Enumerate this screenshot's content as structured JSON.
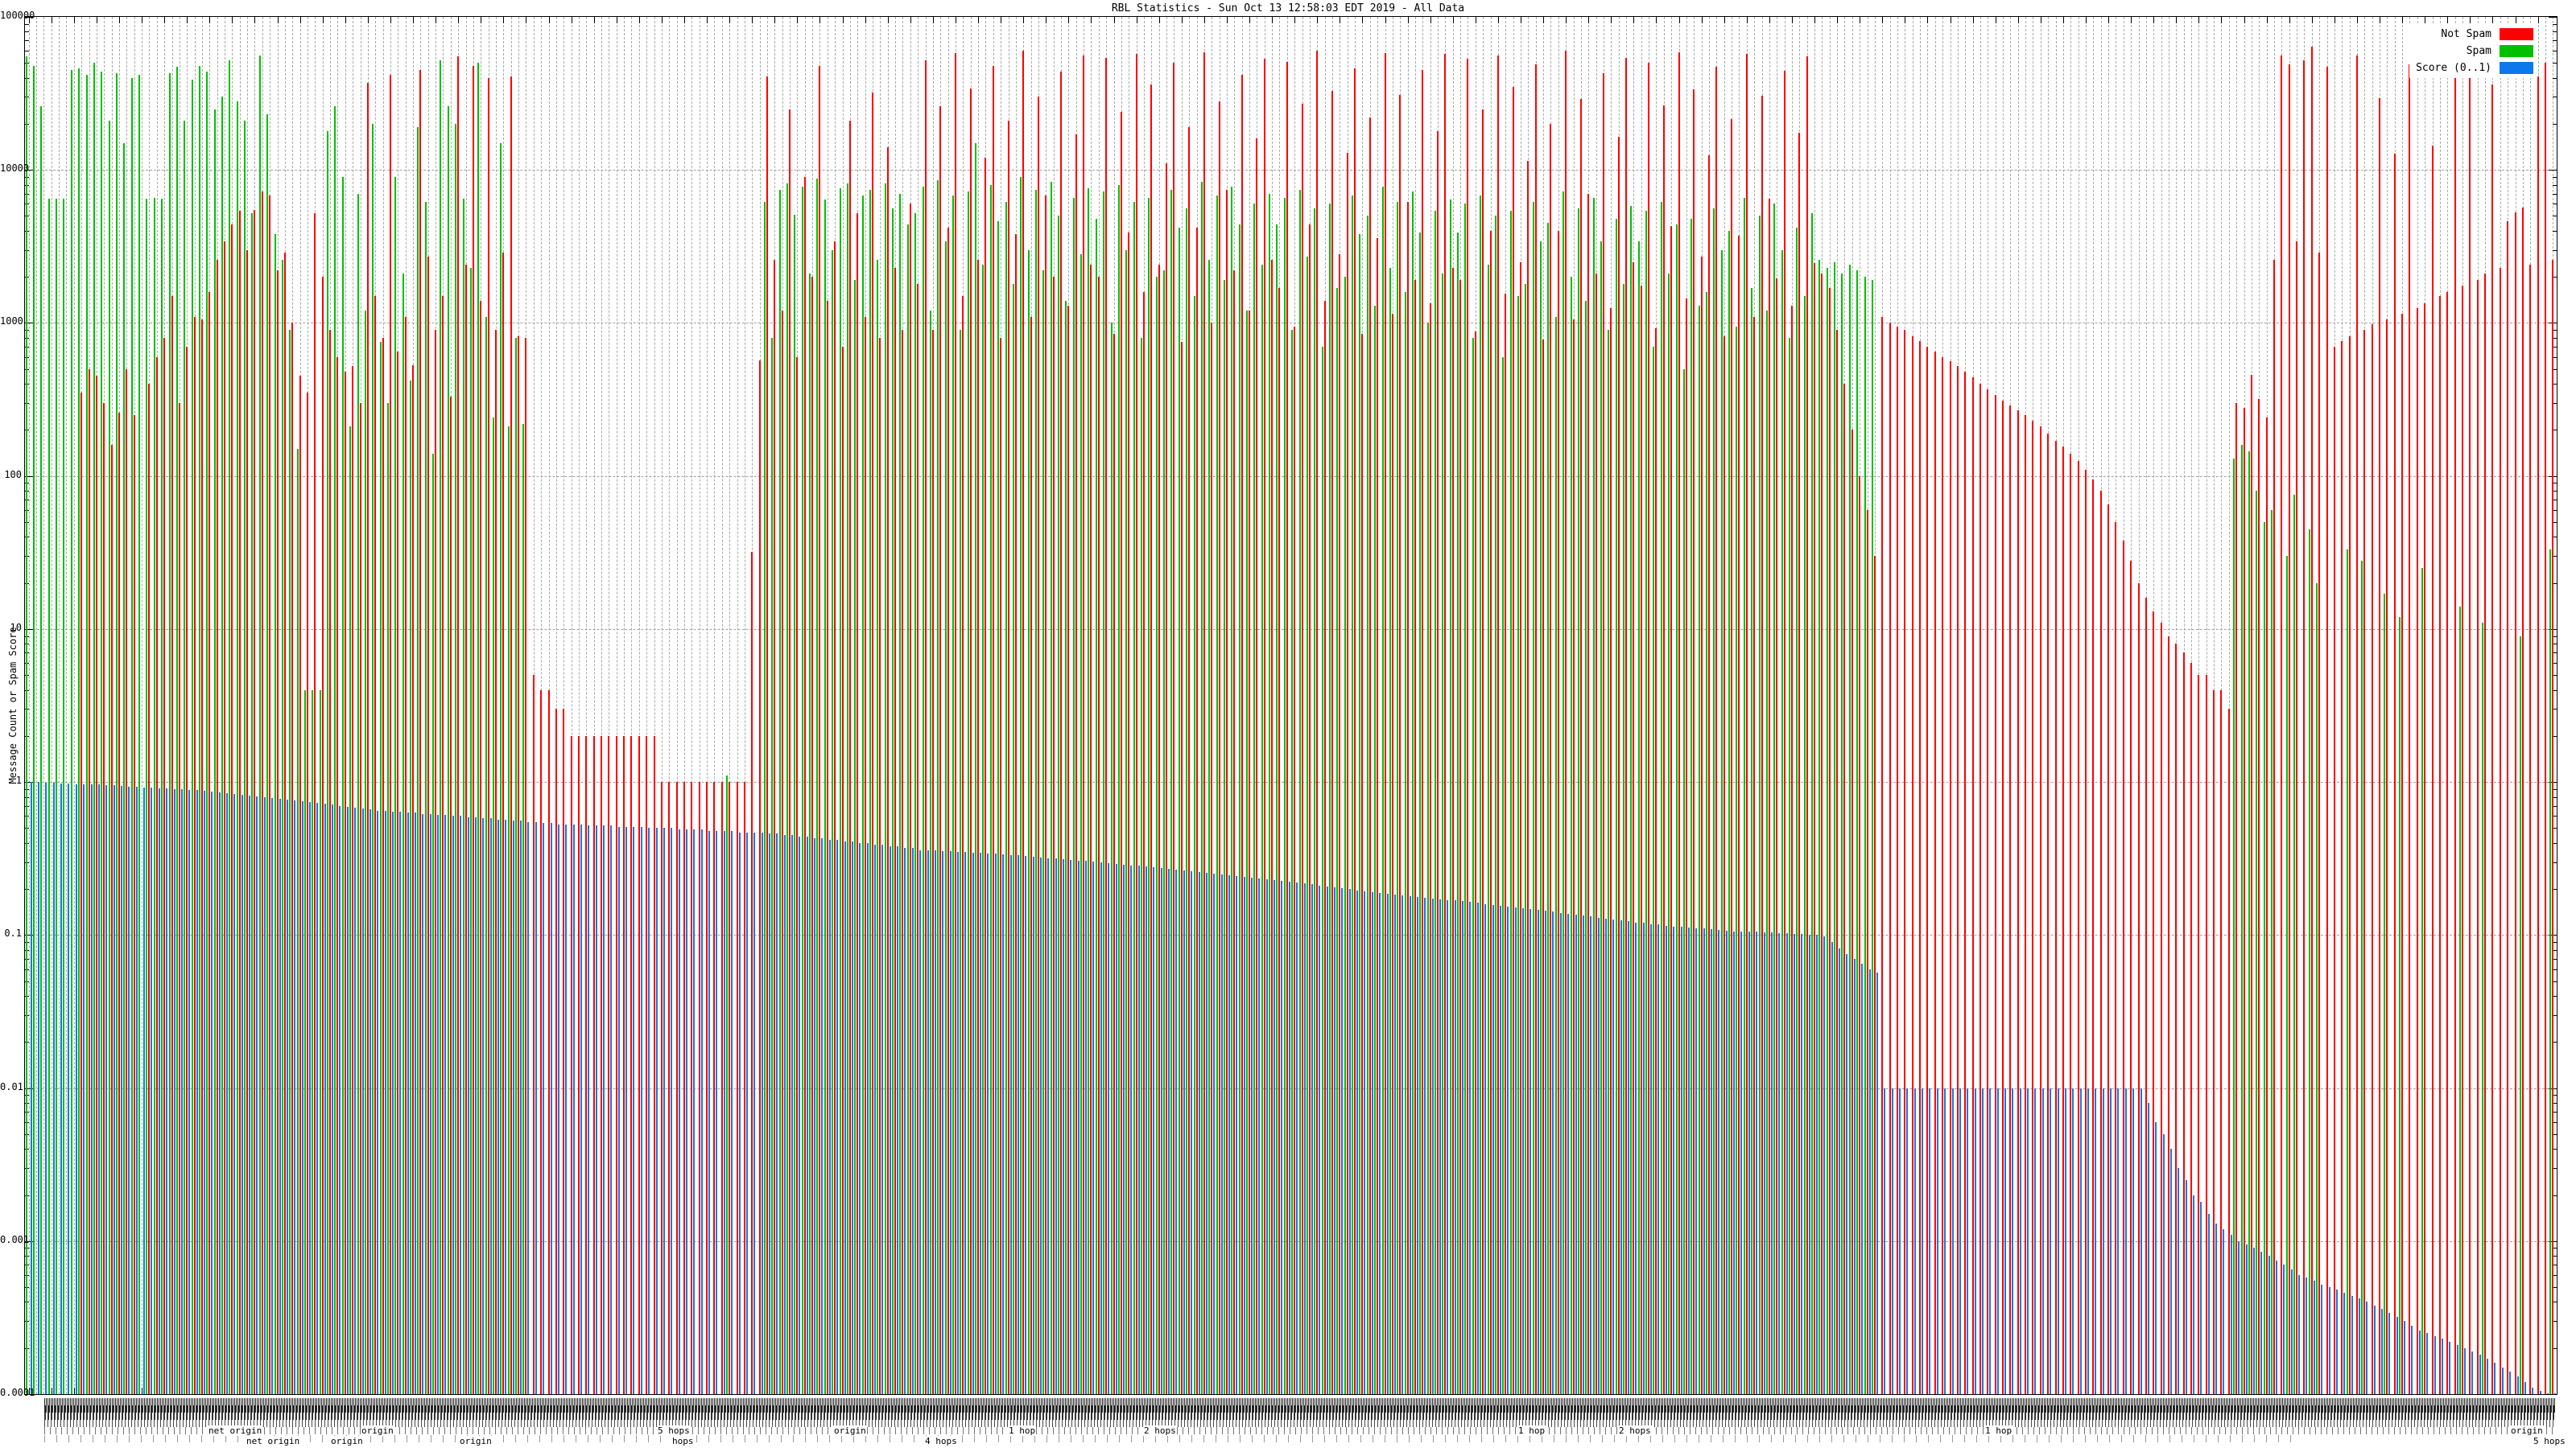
{
  "title": "RBL Statistics - Sun Oct 13 12:58:03 EDT 2019 - All Data",
  "y_axis_label": "Message Count or Spam Score",
  "colors": {
    "not_spam": "#ff0000",
    "spam": "#00c000",
    "score": "#0d78ec",
    "grid": "#a0a0a0",
    "axis": "#000000"
  },
  "legend": {
    "items": [
      {
        "label": "Not Spam",
        "color": "#ff0000"
      },
      {
        "label": "Spam",
        "color": "#00c000"
      },
      {
        "label": "Score (0..1)",
        "color": "#0d78ec"
      }
    ]
  },
  "axes": {
    "y_scale": "log",
    "y_ticks": [
      "100000",
      "10000",
      "1000",
      "100",
      "10",
      "1",
      "0.1",
      "0.01",
      "0.001",
      "0.0001"
    ],
    "y_tick_values": [
      100000,
      10000,
      1000,
      100,
      10,
      1,
      0.1,
      0.01,
      0.001,
      0.0001
    ]
  },
  "x_axis": {
    "note": "~336 RBL hostname tick labels, rotated and heavily overlapping (illegible smudge)",
    "readable_fragments": [
      {
        "text": "net origin",
        "x": 258,
        "row": 5
      },
      {
        "text": "net origin",
        "x": 305,
        "row": 6
      },
      {
        "text": "origin",
        "x": 410,
        "row": 6
      },
      {
        "text": "origin",
        "x": 448,
        "row": 5
      },
      {
        "text": "origin",
        "x": 570,
        "row": 6
      },
      {
        "text": "5 hops",
        "x": 816,
        "row": 5
      },
      {
        "text": "hops",
        "x": 834,
        "row": 6
      },
      {
        "text": "origin",
        "x": 1035,
        "row": 5
      },
      {
        "text": "4 hops",
        "x": 1148,
        "row": 6
      },
      {
        "text": "1 hop",
        "x": 1252,
        "row": 5
      },
      {
        "text": "2 hops",
        "x": 1420,
        "row": 5
      },
      {
        "text": "1 hop",
        "x": 1885,
        "row": 5
      },
      {
        "text": "2 hops",
        "x": 2010,
        "row": 5
      },
      {
        "text": "1 hop",
        "x": 2465,
        "row": 5
      },
      {
        "text": "origin",
        "x": 3118,
        "row": 5
      },
      {
        "text": "5 hops",
        "x": 3146,
        "row": 6
      }
    ]
  },
  "chart_data": {
    "type": "bar",
    "style": "impulses",
    "title": "RBL Statistics - Sun Oct 13 12:58:03 EDT 2019 - All Data",
    "xlabel": "",
    "ylabel": "Message Count or Spam Score",
    "ylim": [
      0.0001,
      100000
    ],
    "y_scale": "log",
    "grid": true,
    "legend_position": "top-right",
    "n_groups": 336,
    "categories_note": "one group per RBL/DNSBL zone; names unreadable due to overlapping rotated labels",
    "series": [
      {
        "name": "Not Spam",
        "color": "#ff0000",
        "values": [
          0,
          0,
          0,
          0,
          0,
          0,
          0,
          350,
          500,
          450,
          300,
          160,
          260,
          500,
          250,
          0,
          400,
          600,
          800,
          1500,
          300,
          700,
          1100,
          1050,
          1600,
          2600,
          3400,
          4400,
          5400,
          3000,
          5500,
          7200,
          6800,
          2200,
          2900,
          1000,
          450,
          350,
          5200,
          2000,
          900,
          600,
          480,
          520,
          300,
          37000,
          1500,
          800,
          42000,
          650,
          1100,
          530,
          45000,
          2700,
          900,
          1500,
          330,
          55000,
          2400,
          48000,
          1400,
          40000,
          900,
          2900,
          41000,
          820,
          800,
          5,
          4,
          4,
          3,
          3,
          2,
          2,
          2,
          2,
          2,
          2,
          2,
          2,
          2,
          2,
          2,
          2,
          1,
          1,
          1,
          1,
          1,
          1,
          1,
          1,
          1,
          1,
          1,
          1,
          32,
          570,
          41000,
          2600,
          1200,
          25000,
          600,
          9000,
          2000,
          48000,
          1400,
          3400,
          700,
          21000,
          5200,
          1100,
          32000,
          800,
          14000,
          2300,
          900,
          6000,
          1800,
          52000,
          900,
          26000,
          4200,
          58000,
          1500,
          34000,
          2600,
          12000,
          48000,
          800,
          21000,
          3800,
          60000,
          1100,
          30000,
          6800,
          2000,
          44000,
          1300,
          17000,
          56000,
          2400,
          2000,
          54000,
          850,
          24000,
          3900,
          57000,
          1600,
          36000,
          2400,
          11000,
          50000,
          750,
          19000,
          4200,
          59000,
          1000,
          28000,
          7400,
          2200,
          42000,
          1200,
          16000,
          53000,
          2600,
          1700,
          51000,
          950,
          27000,
          4400,
          60000,
          1400,
          33000,
          2800,
          13000,
          46000,
          850,
          22000,
          3600,
          58000,
          1150,
          31000,
          6200,
          1900,
          45000,
          1350,
          18000,
          57000,
          2300,
          1900,
          53000,
          880,
          25000,
          4000,
          56000,
          1550,
          35000,
          2500,
          11500,
          49000,
          780,
          20000,
          4000,
          60000,
          1050,
          29000,
          7000,
          2100,
          43000,
          1250,
          16500,
          54000,
          2500,
          1750,
          50000,
          920,
          26500,
          4300,
          59000,
          1450,
          33500,
          2700,
          12500,
          47000,
          820,
          21500,
          3700,
          57000,
          1100,
          30500,
          6500,
          1950,
          44500,
          1300,
          17500,
          55000,
          2450,
          2100,
          1700,
          900,
          400,
          200,
          100,
          60,
          30,
          1100,
          1000,
          950,
          900,
          820,
          760,
          700,
          650,
          600,
          560,
          520,
          480,
          440,
          400,
          370,
          340,
          310,
          290,
          270,
          250,
          230,
          210,
          190,
          170,
          155,
          140,
          125,
          110,
          95,
          80,
          65,
          50,
          38,
          28,
          20,
          16,
          13,
          11,
          9,
          8,
          7,
          6,
          5,
          5,
          4,
          4,
          3,
          300,
          280,
          460,
          320,
          240,
          2600,
          56000,
          49000,
          3400,
          52000,
          64000,
          2900,
          47000,
          700,
          760,
          820,
          56000,
          900,
          980,
          29500,
          1050,
          12800,
          1150,
          49000,
          1250,
          1350,
          14500,
          1500,
          1600,
          41000,
          1750,
          64000,
          1900,
          2100,
          36000,
          2300,
          4600,
          5300,
          5700,
          2400,
          41000,
          50000,
          2600
        ]
      },
      {
        "name": "Spam",
        "color": "#00c000",
        "values": [
          55000,
          48000,
          26000,
          6500,
          6500,
          6500,
          45000,
          46000,
          42000,
          50000,
          44000,
          21000,
          43000,
          15000,
          40000,
          42000,
          6500,
          6600,
          6500,
          43000,
          47000,
          21000,
          39000,
          48000,
          44000,
          25000,
          30000,
          52000,
          28000,
          21000,
          5200,
          56000,
          23000,
          3800,
          2600,
          900,
          150,
          4,
          4,
          4,
          18000,
          26000,
          9000,
          210,
          7000,
          1200,
          20000,
          750,
          300,
          9000,
          2100,
          420,
          19000,
          6200,
          140,
          52000,
          26000,
          20000,
          6500,
          2300,
          50000,
          1100,
          240,
          15000,
          210,
          800,
          220,
          0,
          0,
          0,
          0,
          0,
          0,
          0,
          0,
          0,
          0,
          0,
          0,
          0,
          0,
          0,
          0,
          0,
          0,
          0,
          0,
          0,
          0,
          0,
          0,
          0,
          0,
          1.1,
          0,
          0,
          0,
          0,
          6200,
          800,
          7400,
          8200,
          5100,
          7800,
          2100,
          8800,
          6400,
          3000,
          7600,
          8200,
          1900,
          6800,
          7400,
          2600,
          8200,
          5600,
          7000,
          4400,
          5200,
          7800,
          1200,
          8600,
          3400,
          6800,
          900,
          7200,
          15000,
          2400,
          8000,
          4600,
          6200,
          1800,
          9000,
          3000,
          7400,
          2200,
          8400,
          5000,
          1400,
          6600,
          2800,
          7600,
          4800,
          7200,
          1000,
          8000,
          3000,
          6200,
          800,
          6600,
          2000,
          2200,
          7400,
          4200,
          5600,
          1500,
          8400,
          2600,
          6800,
          1900,
          7800,
          4400,
          1200,
          6000,
          2400,
          7000,
          4400,
          6600,
          900,
          7400,
          2700,
          5600,
          700,
          6000,
          1700,
          2000,
          6800,
          3800,
          5000,
          1300,
          7800,
          2300,
          6200,
          1600,
          7200,
          3900,
          1000,
          5400,
          2100,
          6400,
          3900,
          6000,
          800,
          6800,
          2400,
          5000,
          600,
          5400,
          1500,
          1800,
          6200,
          3400,
          4500,
          1100,
          7200,
          2000,
          5600,
          1400,
          6600,
          3400,
          900,
          4800,
          1800,
          5800,
          3400,
          5400,
          700,
          6200,
          2100,
          4400,
          500,
          4800,
          1300,
          1600,
          5600,
          3000,
          4000,
          950,
          6600,
          1700,
          5000,
          1200,
          6000,
          3000,
          800,
          4200,
          1500,
          5200,
          2600,
          2300,
          2500,
          2100,
          2400,
          2200,
          2000,
          1900,
          0,
          0,
          0,
          0,
          0,
          0,
          0,
          0,
          0,
          0,
          0,
          0,
          0,
          0,
          0,
          0,
          0,
          0,
          0,
          0,
          0,
          0,
          0,
          0,
          0,
          0,
          0,
          0,
          0,
          0,
          0,
          0,
          0,
          0,
          0,
          0,
          0,
          0,
          0,
          0,
          0,
          0,
          0,
          0,
          0,
          0,
          0,
          130,
          160,
          145,
          80,
          50,
          60,
          0,
          30,
          75,
          0,
          45,
          20,
          0,
          0,
          0,
          33,
          0,
          28,
          0,
          0,
          17,
          0,
          12,
          0,
          0,
          25,
          0,
          0,
          0,
          0,
          14,
          0,
          0,
          11,
          0,
          0,
          0,
          0,
          9,
          0,
          0,
          0,
          33
        ]
      },
      {
        "name": "Score (0..1)",
        "color": "#0d78ec",
        "values": [
          1,
          1,
          0.99,
          0.99,
          0.98,
          0.98,
          0.97,
          0.97,
          0.96,
          0.96,
          0.95,
          0.95,
          0.94,
          0.93,
          0.93,
          0.92,
          0.92,
          0.91,
          0.91,
          0.9,
          0.9,
          0.89,
          0.89,
          0.88,
          0.87,
          0.86,
          0.85,
          0.84,
          0.83,
          0.82,
          0.81,
          0.8,
          0.79,
          0.78,
          0.77,
          0.76,
          0.75,
          0.74,
          0.73,
          0.72,
          0.71,
          0.7,
          0.69,
          0.68,
          0.67,
          0.66,
          0.65,
          0.65,
          0.64,
          0.64,
          0.63,
          0.63,
          0.62,
          0.62,
          0.61,
          0.61,
          0.6,
          0.6,
          0.59,
          0.59,
          0.58,
          0.58,
          0.57,
          0.57,
          0.56,
          0.56,
          0.55,
          0.55,
          0.54,
          0.54,
          0.53,
          0.53,
          0.53,
          0.53,
          0.52,
          0.52,
          0.52,
          0.52,
          0.51,
          0.51,
          0.51,
          0.51,
          0.5,
          0.5,
          0.5,
          0.5,
          0.49,
          0.49,
          0.49,
          0.49,
          0.48,
          0.48,
          0.48,
          0.48,
          0.47,
          0.47,
          0.47,
          0.47,
          0.46,
          0.46,
          0.45,
          0.45,
          0.44,
          0.44,
          0.43,
          0.43,
          0.42,
          0.42,
          0.41,
          0.41,
          0.4,
          0.4,
          0.39,
          0.39,
          0.38,
          0.38,
          0.37,
          0.37,
          0.36,
          0.358,
          0.356,
          0.354,
          0.352,
          0.35,
          0.348,
          0.346,
          0.344,
          0.342,
          0.34,
          0.337,
          0.334,
          0.331,
          0.328,
          0.325,
          0.322,
          0.319,
          0.316,
          0.313,
          0.31,
          0.307,
          0.304,
          0.301,
          0.298,
          0.295,
          0.292,
          0.289,
          0.286,
          0.283,
          0.28,
          0.277,
          0.274,
          0.271,
          0.268,
          0.265,
          0.262,
          0.259,
          0.256,
          0.253,
          0.25,
          0.247,
          0.244,
          0.241,
          0.238,
          0.235,
          0.232,
          0.229,
          0.226,
          0.223,
          0.22,
          0.217,
          0.214,
          0.211,
          0.208,
          0.205,
          0.202,
          0.199,
          0.196,
          0.193,
          0.19,
          0.188,
          0.186,
          0.184,
          0.182,
          0.18,
          0.178,
          0.176,
          0.174,
          0.172,
          0.17,
          0.168,
          0.166,
          0.164,
          0.162,
          0.16,
          0.158,
          0.156,
          0.154,
          0.152,
          0.15,
          0.148,
          0.146,
          0.144,
          0.142,
          0.14,
          0.138,
          0.136,
          0.134,
          0.132,
          0.13,
          0.128,
          0.126,
          0.125,
          0.123,
          0.121,
          0.12,
          0.118,
          0.117,
          0.115,
          0.114,
          0.113,
          0.112,
          0.111,
          0.11,
          0.109,
          0.108,
          0.107,
          0.106,
          0.106,
          0.105,
          0.105,
          0.104,
          0.104,
          0.103,
          0.103,
          0.102,
          0.102,
          0.101,
          0.1,
          0.098,
          0.09,
          0.082,
          0.075,
          0.07,
          0.065,
          0.06,
          0.057,
          0.01,
          0.01,
          0.01,
          0.01,
          0.01,
          0.01,
          0.01,
          0.01,
          0.01,
          0.01,
          0.01,
          0.01,
          0.01,
          0.01,
          0.01,
          0.01,
          0.01,
          0.01,
          0.01,
          0.01,
          0.01,
          0.01,
          0.01,
          0.01,
          0.01,
          0.01,
          0.01,
          0.01,
          0.01,
          0.01,
          0.01,
          0.01,
          0.01,
          0.01,
          0.01,
          0.008,
          0.006,
          0.005,
          0.004,
          0.003,
          0.0025,
          0.002,
          0.0018,
          0.0015,
          0.0013,
          0.0012,
          0.0011,
          0.001,
          0.00095,
          0.0009,
          0.00085,
          0.0008,
          0.00075,
          0.0007,
          0.00065,
          0.0006,
          0.00058,
          0.00055,
          0.00052,
          0.0005,
          0.00048,
          0.00046,
          0.00044,
          0.00042,
          0.0004,
          0.00038,
          0.00036,
          0.00034,
          0.00032,
          0.0003,
          0.00028,
          0.00026,
          0.00025,
          0.00024,
          0.00023,
          0.00022,
          0.00021,
          0.0002,
          0.00019,
          0.00018,
          0.00017,
          0.00016,
          0.00015,
          0.00014,
          0.00013,
          0.00012,
          0.00011,
          0.000105,
          0.0001,
          0.0001
        ]
      }
    ]
  }
}
